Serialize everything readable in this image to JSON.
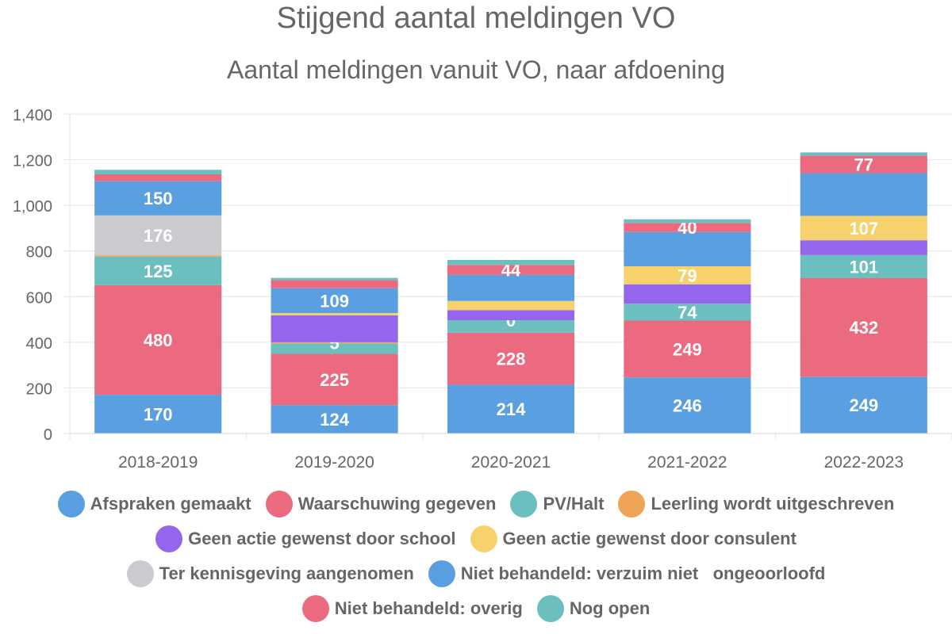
{
  "title": "Stijgend aantal meldingen VO",
  "subtitle": "Aantal meldingen vanuit VO, naar afdoening",
  "chart_data": {
    "type": "bar",
    "stacked": true,
    "categories": [
      "2018-2019",
      "2019-2020",
      "2020-2021",
      "2021-2022",
      "2022-2023"
    ],
    "ylim": [
      0,
      1400
    ],
    "yticks": [
      0,
      200,
      400,
      600,
      800,
      1000,
      1200,
      1400
    ],
    "ytick_labels": [
      "0",
      "200",
      "400",
      "600",
      "800",
      "1,000",
      "1,200",
      "1,400"
    ],
    "grid": true,
    "legend_position": "bottom",
    "series": [
      {
        "name": "Afspraken gemaakt",
        "color": "#5aa0e1",
        "values": [
          170,
          124,
          214,
          246,
          249
        ],
        "labels": [
          "170",
          "124",
          "214",
          "246",
          "249"
        ]
      },
      {
        "name": "Waarschuwing gegeven",
        "color": "#ec6a80",
        "values": [
          480,
          225,
          228,
          249,
          432
        ],
        "labels": [
          "480",
          "225",
          "228",
          "249",
          "432"
        ]
      },
      {
        "name": "PV/Halt",
        "color": "#6bbfbf",
        "values": [
          125,
          46,
          54,
          74,
          101
        ],
        "labels": [
          "125",
          "",
          "",
          "74",
          "101"
        ]
      },
      {
        "name": "Leerling wordt uitgeschreven",
        "color": "#f0a456",
        "values": [
          5,
          5,
          0,
          0,
          0
        ],
        "labels": [
          "",
          "5",
          "0",
          "",
          ""
        ]
      },
      {
        "name": "Geen actie gewenst door school",
        "color": "#9466ee",
        "values": [
          0,
          118,
          45,
          85,
          65
        ],
        "labels": [
          "",
          "",
          "",
          "",
          ""
        ]
      },
      {
        "name": "Geen actie gewenst door consulent",
        "color": "#f7d26c",
        "values": [
          0,
          10,
          40,
          79,
          107
        ],
        "labels": [
          "",
          "",
          "",
          "79",
          "107"
        ]
      },
      {
        "name": "Ter kennisgeving aangenomen",
        "color": "#c9cbcf",
        "values": [
          176,
          0,
          0,
          0,
          0
        ],
        "labels": [
          "176",
          "",
          "",
          "",
          ""
        ]
      },
      {
        "name": "Niet behandeld: verzuim niet   ongeoorloofd",
        "color": "#5aa0e1",
        "values": [
          150,
          109,
          114,
          150,
          187
        ],
        "labels": [
          "150",
          "109",
          "",
          "",
          ""
        ]
      },
      {
        "name": "Niet behandeld: overig",
        "color": "#ec6a80",
        "values": [
          30,
          35,
          44,
          40,
          77
        ],
        "labels": [
          "",
          "",
          "44",
          "40",
          "77"
        ]
      },
      {
        "name": "Nog open",
        "color": "#6bbfbf",
        "values": [
          20,
          10,
          22,
          16,
          14
        ],
        "labels": [
          "",
          "",
          "",
          "",
          ""
        ]
      }
    ]
  },
  "legend_rows": [
    [
      0,
      1,
      2,
      3
    ],
    [
      4,
      5
    ],
    [
      6,
      7
    ],
    [
      8,
      9
    ]
  ]
}
